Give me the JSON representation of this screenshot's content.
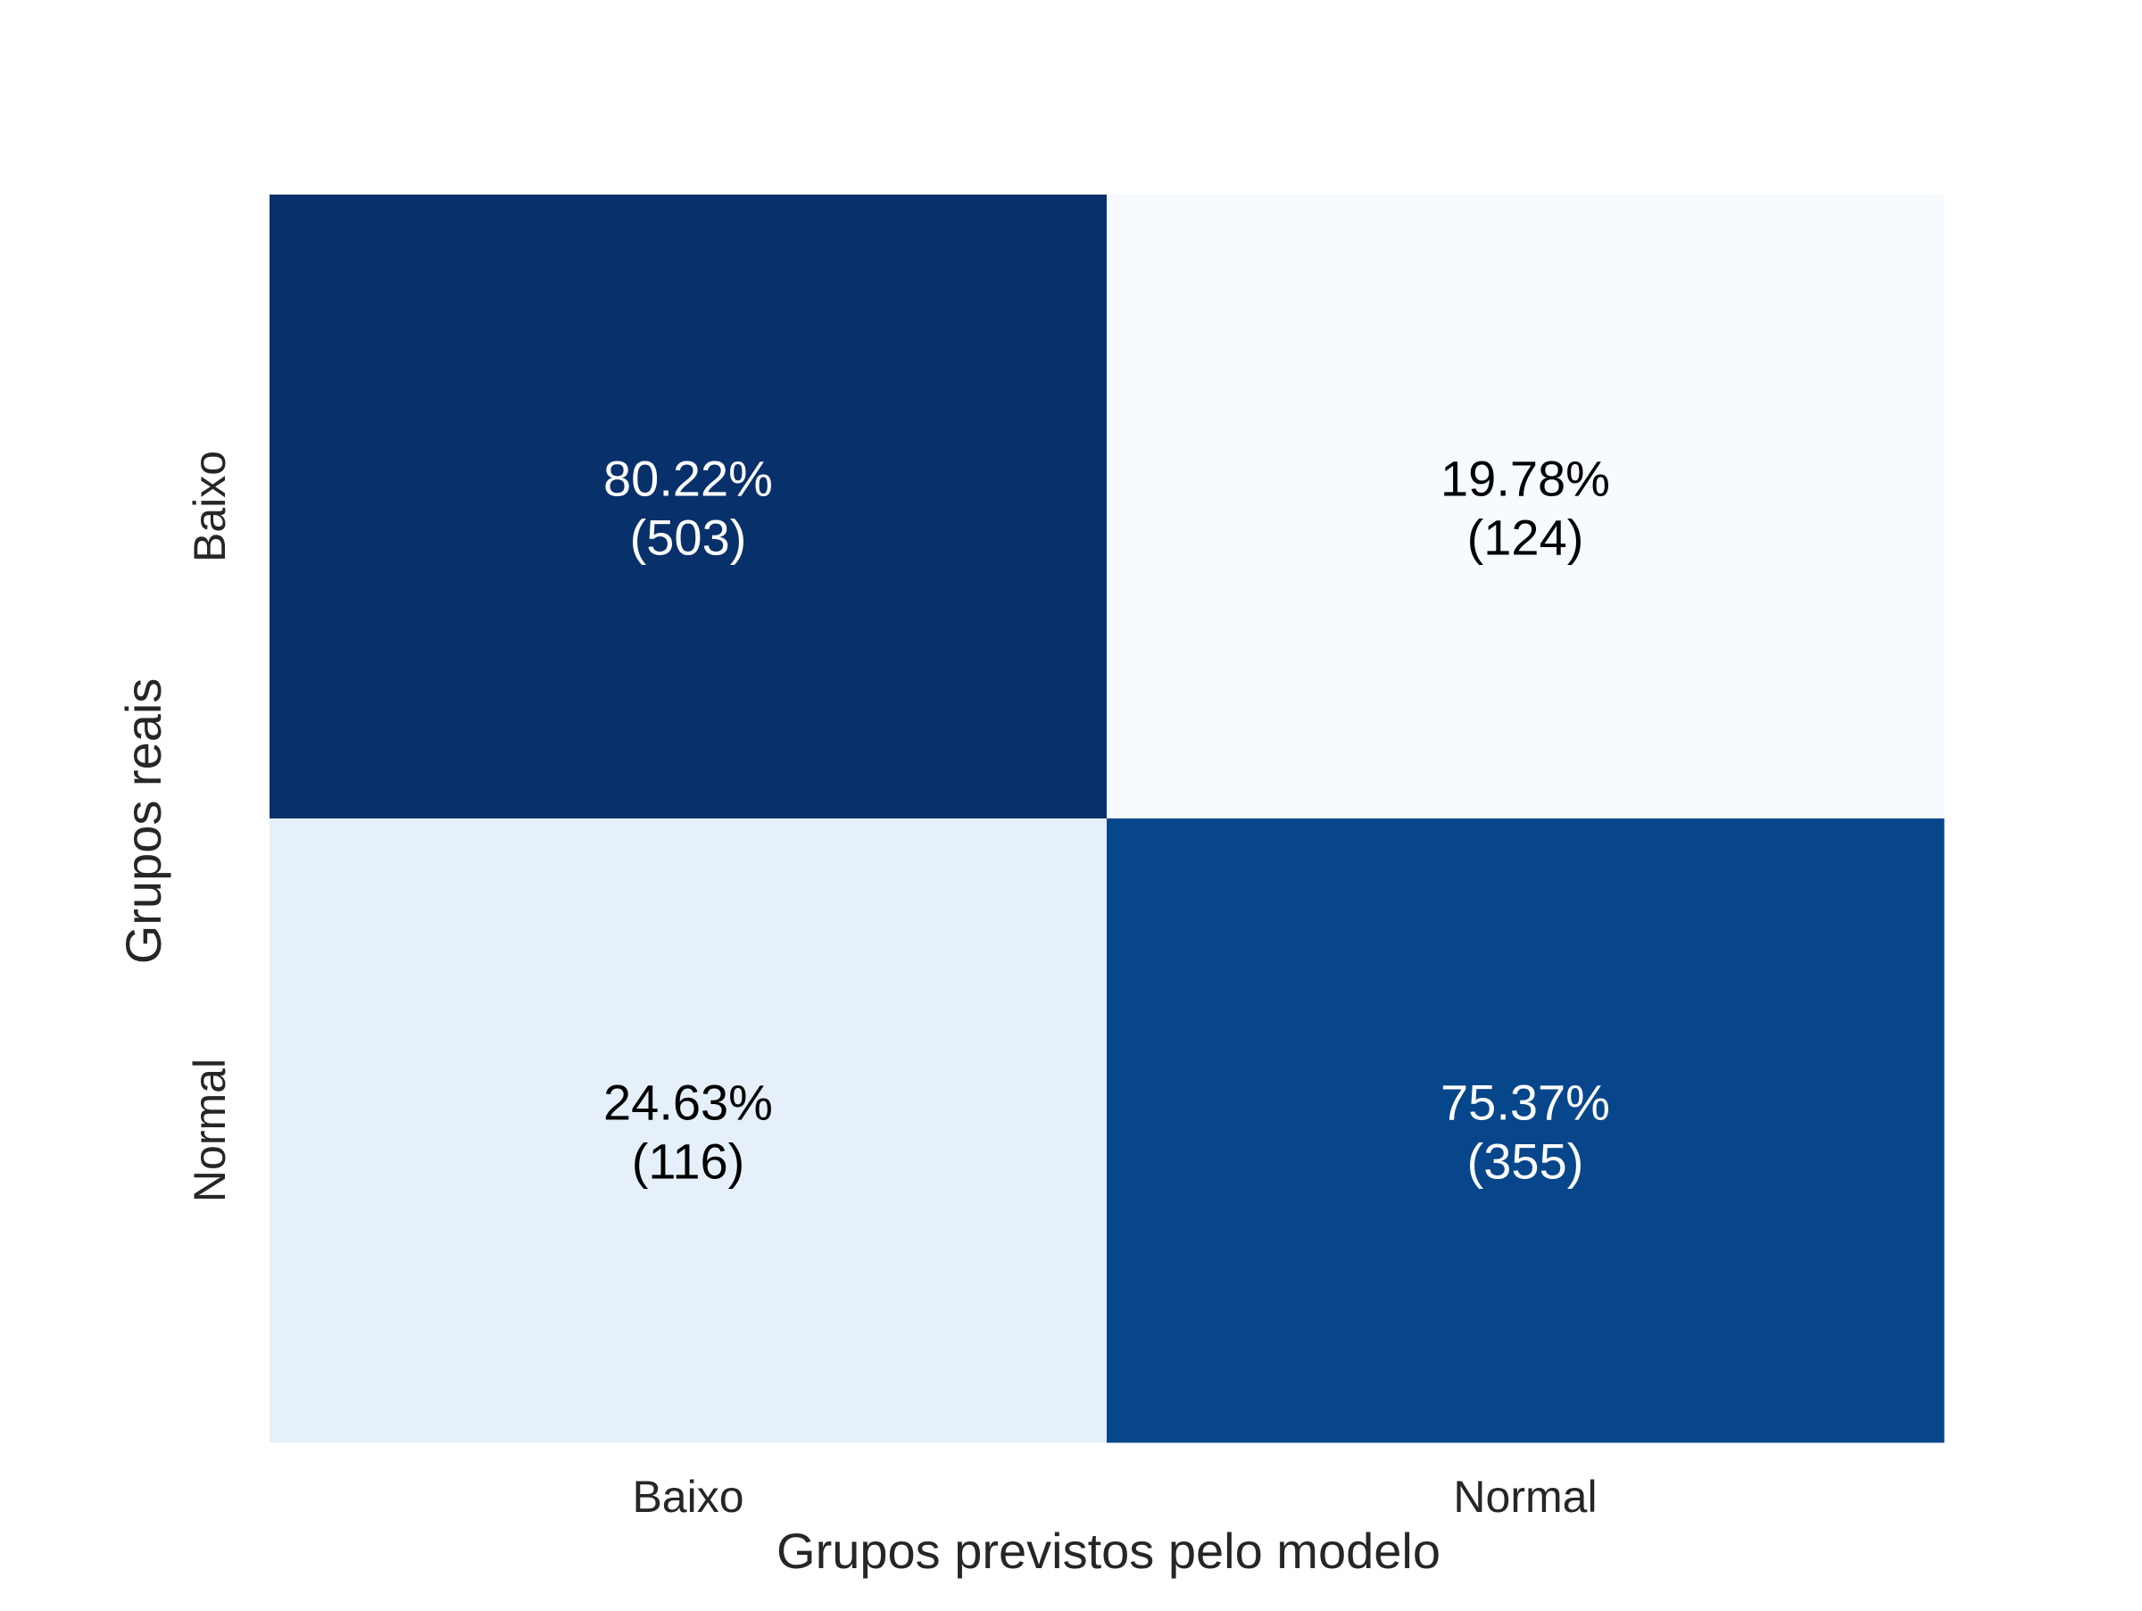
{
  "chart_data": {
    "type": "heatmap",
    "title": "",
    "xlabel": "Grupos previstos pelo modelo",
    "ylabel": "Grupos reais",
    "x_categories": [
      "Baixo",
      "Normal"
    ],
    "y_categories": [
      "Baixo",
      "Normal"
    ],
    "cells": [
      {
        "row": 0,
        "col": 0,
        "percent": "80.22%",
        "count": "(503)",
        "value": 0.8022,
        "color": "#08306b",
        "text_color": "#ffffff"
      },
      {
        "row": 0,
        "col": 1,
        "percent": "19.78%",
        "count": "(124)",
        "value": 0.1978,
        "color": "#f7fbff",
        "text_color": "#000000"
      },
      {
        "row": 1,
        "col": 0,
        "percent": "24.63%",
        "count": "(116)",
        "value": 0.2463,
        "color": "#e6f0fa",
        "text_color": "#000000"
      },
      {
        "row": 1,
        "col": 1,
        "percent": "75.37%",
        "count": "(355)",
        "value": 0.7537,
        "color": "#08468b",
        "text_color": "#ffffff"
      }
    ],
    "colormap": "Blues",
    "colorbar": false,
    "grid": false
  }
}
